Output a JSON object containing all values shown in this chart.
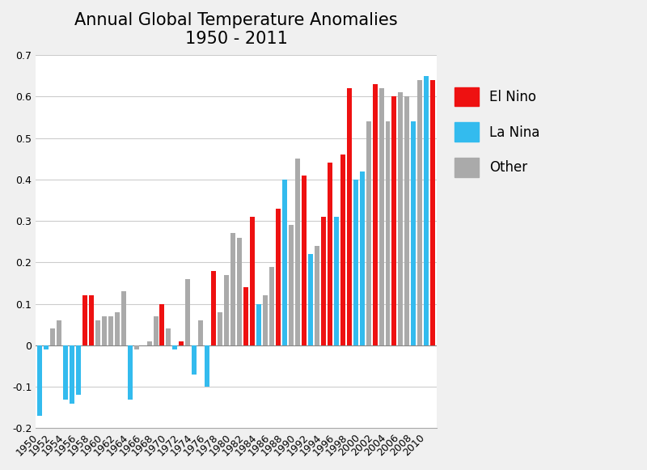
{
  "title_line1": "Annual Global Temperature Anomalies",
  "title_line2": "1950 - 2011",
  "years_data": [
    [
      1950,
      -0.17,
      0
    ],
    [
      1951,
      -0.01,
      0
    ],
    [
      1952,
      0.04,
      2
    ],
    [
      1953,
      0.06,
      2
    ],
    [
      1954,
      -0.13,
      0
    ],
    [
      1955,
      -0.14,
      0
    ],
    [
      1956,
      -0.12,
      0
    ],
    [
      1957,
      0.12,
      1
    ],
    [
      1958,
      0.12,
      1
    ],
    [
      1959,
      0.06,
      2
    ],
    [
      1960,
      0.07,
      2
    ],
    [
      1961,
      0.07,
      2
    ],
    [
      1962,
      0.08,
      2
    ],
    [
      1963,
      0.13,
      2
    ],
    [
      1964,
      -0.13,
      0
    ],
    [
      1965,
      -0.01,
      2
    ],
    [
      1966,
      0.0,
      2
    ],
    [
      1967,
      0.01,
      2
    ],
    [
      1968,
      0.07,
      2
    ],
    [
      1969,
      0.1,
      1
    ],
    [
      1970,
      0.04,
      2
    ],
    [
      1971,
      -0.01,
      0
    ],
    [
      1972,
      0.01,
      1
    ],
    [
      1973,
      0.16,
      2
    ],
    [
      1974,
      -0.07,
      0
    ],
    [
      1975,
      0.06,
      2
    ],
    [
      1976,
      -0.1,
      0
    ],
    [
      1977,
      0.18,
      1
    ],
    [
      1978,
      0.08,
      2
    ],
    [
      1979,
      0.17,
      2
    ],
    [
      1980,
      0.27,
      2
    ],
    [
      1981,
      0.26,
      2
    ],
    [
      1982,
      0.14,
      1
    ],
    [
      1983,
      0.31,
      1
    ],
    [
      1984,
      0.1,
      0
    ],
    [
      1985,
      0.12,
      2
    ],
    [
      1986,
      0.19,
      2
    ],
    [
      1987,
      0.33,
      1
    ],
    [
      1988,
      0.4,
      0
    ],
    [
      1989,
      0.29,
      2
    ],
    [
      1990,
      0.45,
      2
    ],
    [
      1991,
      0.41,
      1
    ],
    [
      1992,
      0.22,
      0
    ],
    [
      1993,
      0.24,
      2
    ],
    [
      1994,
      0.31,
      1
    ],
    [
      1995,
      0.44,
      1
    ],
    [
      1996,
      0.31,
      0
    ],
    [
      1997,
      0.46,
      1
    ],
    [
      1998,
      0.62,
      1
    ],
    [
      1999,
      0.4,
      0
    ],
    [
      2000,
      0.42,
      0
    ],
    [
      2001,
      0.54,
      2
    ],
    [
      2002,
      0.63,
      1
    ],
    [
      2003,
      0.62,
      2
    ],
    [
      2004,
      0.54,
      2
    ],
    [
      2005,
      0.6,
      1
    ],
    [
      2006,
      0.61,
      2
    ],
    [
      2007,
      0.6,
      2
    ],
    [
      2008,
      0.54,
      0
    ],
    [
      2009,
      0.64,
      2
    ],
    [
      2010,
      0.65,
      0
    ],
    [
      2011,
      0.64,
      1
    ]
  ],
  "el_nino_color": "#ee1111",
  "la_nina_color": "#33bbee",
  "other_color": "#aaaaaa",
  "ylim": [
    -0.2,
    0.7
  ],
  "yticks": [
    -0.2,
    -0.1,
    0.0,
    0.1,
    0.2,
    0.3,
    0.4,
    0.5,
    0.6,
    0.7
  ],
  "background_color": "#f0f0f0",
  "plot_bg_color": "#ffffff",
  "grid_color": "#cccccc",
  "title_fontsize": 15,
  "legend_fontsize": 12,
  "tick_fontsize": 9
}
